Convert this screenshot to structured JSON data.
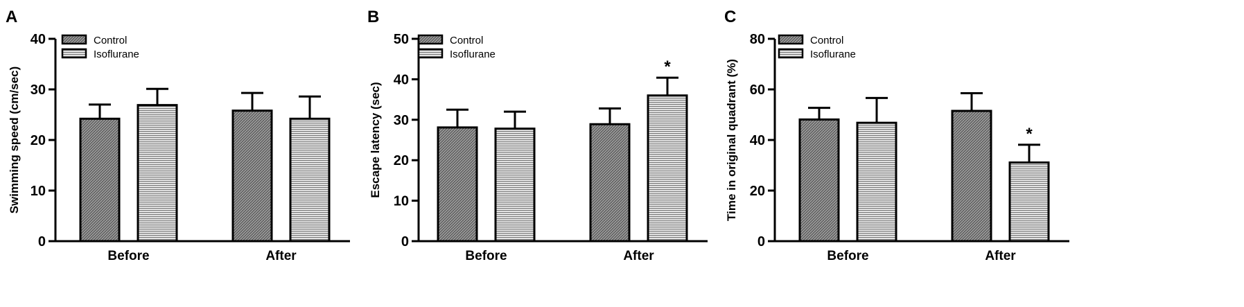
{
  "colors": {
    "axis": "#000000",
    "control_fill": "#5a5a5a",
    "isoflurane_fill": "#d9d9d9",
    "background": "#ffffff"
  },
  "chart_data": [
    {
      "type": "bar",
      "panel_label": "A",
      "categories": [
        "Before",
        "After"
      ],
      "series": [
        {
          "name": "Control",
          "values": [
            24.2,
            25.8
          ],
          "errors": [
            2.8,
            3.5
          ]
        },
        {
          "name": "Isoflurane",
          "values": [
            26.9,
            24.2
          ],
          "errors": [
            3.2,
            4.4
          ]
        }
      ],
      "ylabel": "Swimming speed (cm/sec)",
      "xlabel": "",
      "ylim": [
        0,
        40
      ],
      "yticks": [
        0,
        10,
        20,
        30,
        40
      ],
      "significance": [
        false,
        false,
        false,
        false
      ],
      "legend_position": "top-left",
      "grid": false
    },
    {
      "type": "bar",
      "panel_label": "B",
      "categories": [
        "Before",
        "After"
      ],
      "series": [
        {
          "name": "Control",
          "values": [
            28.1,
            28.9
          ],
          "errors": [
            4.4,
            3.9
          ]
        },
        {
          "name": "Isoflurane",
          "values": [
            27.8,
            36.0
          ],
          "errors": [
            4.2,
            4.4
          ]
        }
      ],
      "ylabel": "Escape latency (sec)",
      "xlabel": "",
      "ylim": [
        0,
        50
      ],
      "yticks": [
        0,
        10,
        20,
        30,
        40,
        50
      ],
      "significance": [
        false,
        false,
        false,
        true
      ],
      "annotation": "*",
      "legend_position": "top-left",
      "grid": false
    },
    {
      "type": "bar",
      "panel_label": "C",
      "categories": [
        "Before",
        "After"
      ],
      "series": [
        {
          "name": "Control",
          "values": [
            48.1,
            51.5
          ],
          "errors": [
            4.6,
            7.0
          ]
        },
        {
          "name": "Isoflurane",
          "values": [
            46.8,
            31.1
          ],
          "errors": [
            9.8,
            7.0
          ]
        }
      ],
      "ylabel": "Time in original quadrant (%)",
      "xlabel": "",
      "ylim": [
        0,
        80
      ],
      "yticks": [
        0,
        20,
        40,
        60,
        80
      ],
      "significance": [
        false,
        false,
        false,
        true
      ],
      "annotation": "*",
      "legend_position": "top-left",
      "grid": false
    }
  ]
}
